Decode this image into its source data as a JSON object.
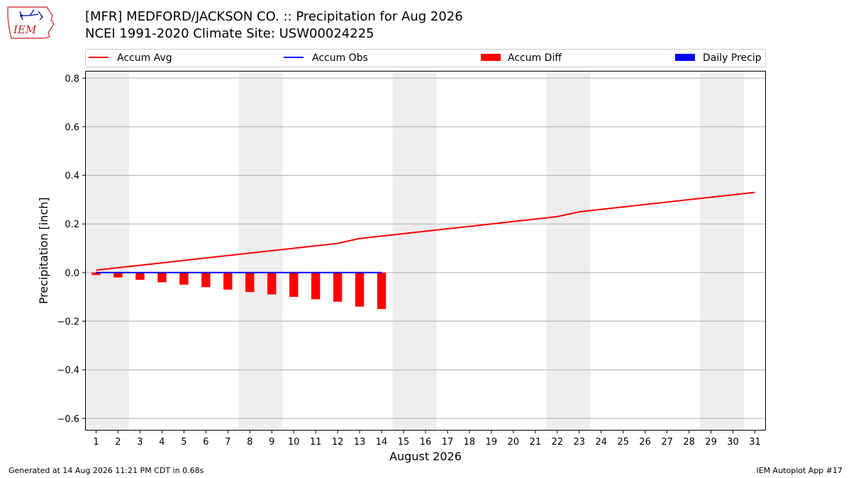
{
  "header": {
    "logo_text": "IEM",
    "title": "[MFR] MEDFORD/JACKSON CO. :: Precipitation for Aug 2026",
    "subtitle": "NCEI 1991-2020 Climate Site: USW00024225"
  },
  "footer": {
    "generated": "Generated at 14 Aug 2026 11:21 PM CDT in 0.68s",
    "app": "IEM Autoplot App #17"
  },
  "chart_data": {
    "type": "bar",
    "title": "[MFR] MEDFORD/JACKSON CO. :: Precipitation for Aug 2026",
    "xlabel": "August 2026",
    "ylabel": "Precipitation [inch]",
    "xlim": [
      0.5,
      31.5
    ],
    "ylim": [
      -0.65,
      0.83
    ],
    "yticks": [
      -0.6,
      -0.4,
      -0.2,
      0.0,
      0.2,
      0.4,
      0.6,
      0.8
    ],
    "ytick_labels": [
      "−0.6",
      "−0.4",
      "−0.2",
      "0.0",
      "0.2",
      "0.4",
      "0.6",
      "0.8"
    ],
    "x": [
      1,
      2,
      3,
      4,
      5,
      6,
      7,
      8,
      9,
      10,
      11,
      12,
      13,
      14,
      15,
      16,
      17,
      18,
      19,
      20,
      21,
      22,
      23,
      24,
      25,
      26,
      27,
      28,
      29,
      30,
      31
    ],
    "grid": "horizontal",
    "legend_position": "top",
    "weekend_shading": [
      [
        1,
        2
      ],
      [
        8,
        9
      ],
      [
        15,
        16
      ],
      [
        22,
        23
      ],
      [
        29,
        30
      ]
    ],
    "weekend_color": "#eeeeee",
    "series": [
      {
        "name": "Accum Avg",
        "kind": "line",
        "color": "#ff0000",
        "x": [
          1,
          2,
          3,
          4,
          5,
          6,
          7,
          8,
          9,
          10,
          11,
          12,
          13,
          14,
          15,
          16,
          17,
          18,
          19,
          20,
          21,
          22,
          23,
          24,
          25,
          26,
          27,
          28,
          29,
          30,
          31
        ],
        "values": [
          0.01,
          0.02,
          0.03,
          0.04,
          0.05,
          0.06,
          0.07,
          0.08,
          0.09,
          0.1,
          0.11,
          0.12,
          0.14,
          0.15,
          0.16,
          0.17,
          0.18,
          0.19,
          0.2,
          0.21,
          0.22,
          0.23,
          0.25,
          0.26,
          0.27,
          0.28,
          0.29,
          0.3,
          0.31,
          0.32,
          0.33
        ]
      },
      {
        "name": "Accum Obs",
        "kind": "line",
        "color": "#0000ff",
        "x": [
          1,
          2,
          3,
          4,
          5,
          6,
          7,
          8,
          9,
          10,
          11,
          12,
          13,
          14
        ],
        "values": [
          0,
          0,
          0,
          0,
          0,
          0,
          0,
          0,
          0,
          0,
          0,
          0,
          0,
          0
        ]
      },
      {
        "name": "Accum Diff",
        "kind": "bar",
        "color": "#ff0000",
        "x": [
          1,
          2,
          3,
          4,
          5,
          6,
          7,
          8,
          9,
          10,
          11,
          12,
          13,
          14
        ],
        "values": [
          -0.01,
          -0.02,
          -0.03,
          -0.04,
          -0.05,
          -0.06,
          -0.07,
          -0.08,
          -0.09,
          -0.1,
          -0.11,
          -0.12,
          -0.14,
          -0.15
        ]
      },
      {
        "name": "Daily Precip",
        "kind": "bar",
        "color": "#0000ff",
        "x": [
          1,
          2,
          3,
          4,
          5,
          6,
          7,
          8,
          9,
          10,
          11,
          12,
          13,
          14
        ],
        "values": [
          0,
          0,
          0,
          0,
          0,
          0,
          0,
          0,
          0,
          0,
          0,
          0,
          0,
          0
        ]
      }
    ]
  }
}
